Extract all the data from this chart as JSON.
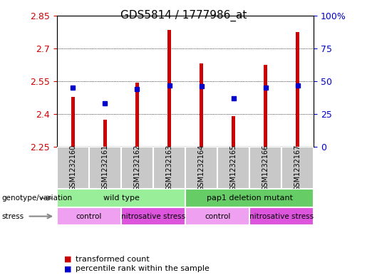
{
  "title": "GDS5814 / 1777986_at",
  "samples": [
    "GSM1232160",
    "GSM1232161",
    "GSM1232162",
    "GSM1232163",
    "GSM1232164",
    "GSM1232165",
    "GSM1232166",
    "GSM1232167"
  ],
  "transformed_counts": [
    2.48,
    2.375,
    2.545,
    2.785,
    2.63,
    2.39,
    2.625,
    2.775
  ],
  "percentile_ranks": [
    45,
    33,
    44,
    47,
    46,
    37,
    45,
    47
  ],
  "ymin": 2.25,
  "ymax": 2.85,
  "yticks": [
    2.25,
    2.4,
    2.55,
    2.7,
    2.85
  ],
  "yticks_right": [
    0,
    25,
    50,
    75,
    100
  ],
  "bar_color": "#cc0000",
  "dot_color": "#0000cc",
  "genotype_groups": [
    {
      "label": "wild type",
      "start": 0,
      "end": 4,
      "color": "#99ee99"
    },
    {
      "label": "pap1 deletion mutant",
      "start": 4,
      "end": 8,
      "color": "#66cc66"
    }
  ],
  "stress_groups": [
    {
      "label": "control",
      "start": 0,
      "end": 2,
      "color": "#f0a0f0"
    },
    {
      "label": "nitrosative stress",
      "start": 2,
      "end": 4,
      "color": "#dd55dd"
    },
    {
      "label": "control",
      "start": 4,
      "end": 6,
      "color": "#f0a0f0"
    },
    {
      "label": "nitrosative stress",
      "start": 6,
      "end": 8,
      "color": "#dd55dd"
    }
  ]
}
